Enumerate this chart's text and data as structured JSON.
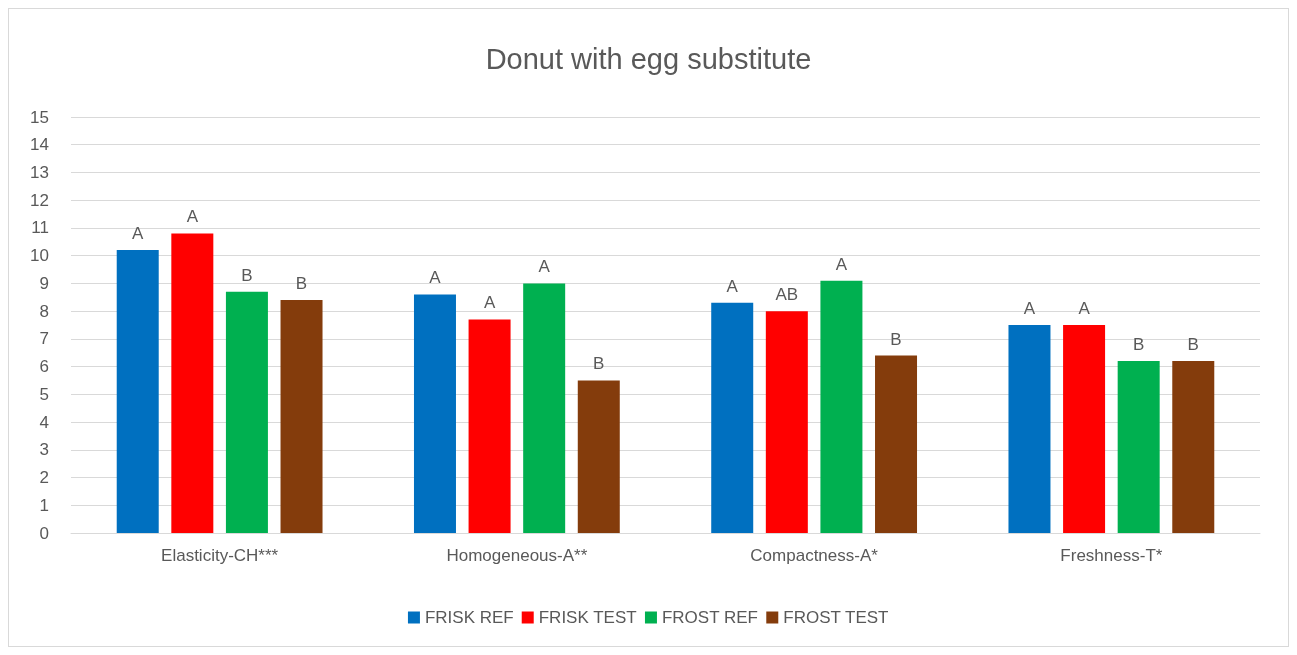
{
  "chart_data": {
    "type": "bar",
    "title": "Donut with egg substitute",
    "categories": [
      "Elasticity-CH***",
      "Homogeneous-A**",
      "Compactness-A*",
      "Freshness-T*"
    ],
    "series": [
      {
        "name": "FRISK REF",
        "color": "#0070c0",
        "values": [
          10.2,
          8.6,
          8.3,
          7.5
        ],
        "value_labels": [
          "A",
          "A",
          "A",
          "A"
        ]
      },
      {
        "name": "FRISK TEST",
        "color": "#ff0000",
        "values": [
          10.8,
          7.7,
          8.0,
          7.5
        ],
        "value_labels": [
          "A",
          "A",
          "AB",
          "A"
        ]
      },
      {
        "name": "FROST REF",
        "color": "#00b050",
        "values": [
          8.7,
          9.0,
          9.1,
          6.2
        ],
        "value_labels": [
          "B",
          "A",
          "A",
          "B"
        ]
      },
      {
        "name": "FROST TEST",
        "color": "#843c0c",
        "values": [
          8.4,
          5.5,
          6.4,
          6.2
        ],
        "value_labels": [
          "B",
          "B",
          "B",
          "B"
        ]
      }
    ],
    "ylim": [
      0,
      15
    ],
    "yticks": [
      0,
      1,
      2,
      3,
      4,
      5,
      6,
      7,
      8,
      9,
      10,
      11,
      12,
      13,
      14,
      15
    ],
    "grid": "y",
    "legend": "bottom"
  }
}
